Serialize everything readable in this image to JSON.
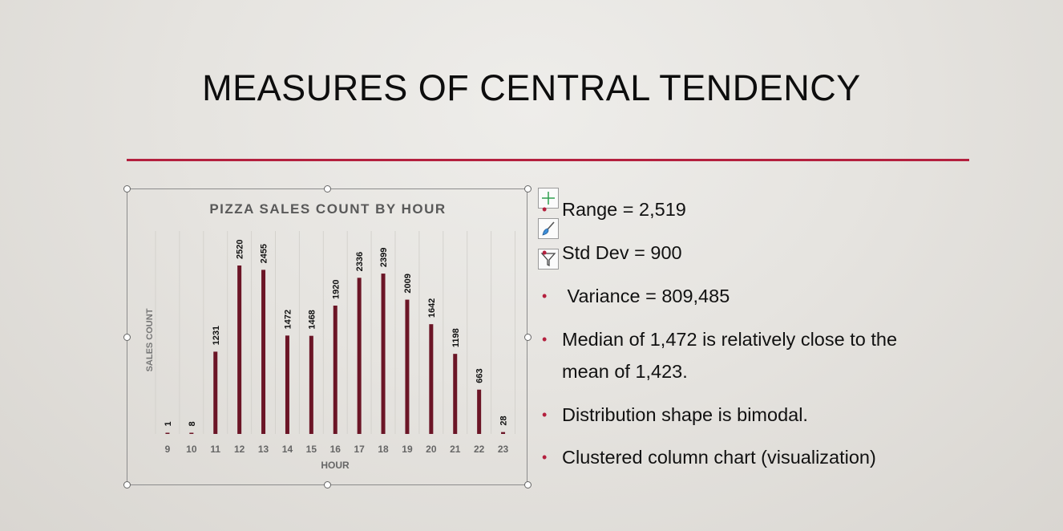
{
  "slide": {
    "title": "MEASURES OF CENTRAL TENDENCY",
    "accent_color": "#b4203e",
    "bullets": [
      {
        "text": "Range = 2,519"
      },
      {
        "text": "Std Dev = 900"
      },
      {
        "text": " Variance = 809,485"
      },
      {
        "text": "Median of 1,472 is relatively close to the",
        "text2": "mean of 1,423."
      },
      {
        "text": "Distribution shape is bimodal."
      },
      {
        "text": "Clustered column chart (visualization)"
      }
    ]
  },
  "chart_tools": {
    "buttons": [
      {
        "icon": "chart-elements-plus-icon"
      },
      {
        "icon": "chart-styles-brush-icon"
      },
      {
        "icon": "chart-filters-funnel-icon"
      }
    ]
  },
  "chart_data": {
    "type": "bar",
    "title": "PIZZA SALES COUNT BY HOUR",
    "xlabel": "HOUR",
    "ylabel": "SALES COUNT",
    "categories": [
      "9",
      "10",
      "11",
      "12",
      "13",
      "14",
      "15",
      "16",
      "17",
      "18",
      "19",
      "20",
      "21",
      "22",
      "23"
    ],
    "values": [
      1,
      8,
      1231,
      2520,
      2455,
      1472,
      1468,
      1920,
      2336,
      2399,
      2009,
      1642,
      1198,
      663,
      28
    ],
    "ylim": [
      0,
      2800
    ],
    "bar_color": "#6b1526",
    "grid": "vertical",
    "data_labels": true
  }
}
